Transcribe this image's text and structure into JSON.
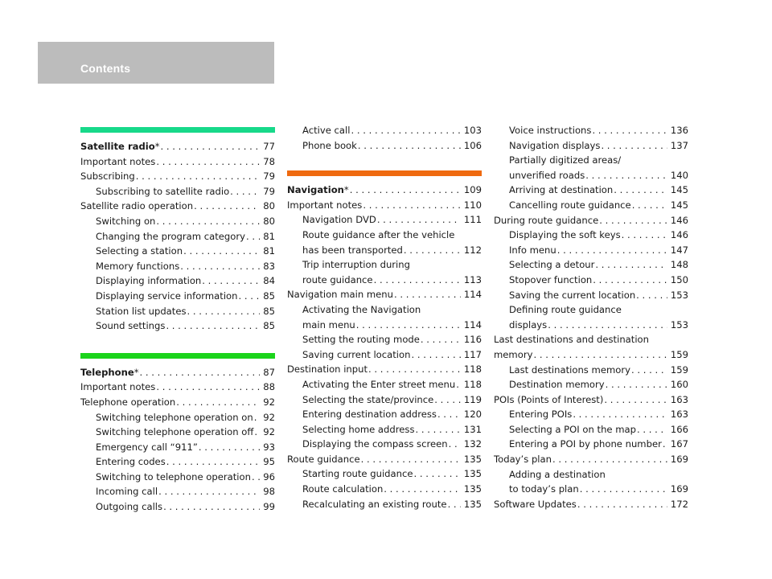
{
  "header": {
    "title": "Contents",
    "bg": "#bcbcbc"
  },
  "colors": {
    "satellite": "#17d98a",
    "telephone": "#1bd41b",
    "navigation": "#ef6a10"
  },
  "sections": {
    "satellite": {
      "title": "Satellite radio",
      "title_suffix": "*",
      "title_page": "77",
      "entries": [
        {
          "text": "Important notes",
          "page": "78"
        },
        {
          "text": "Subscribing",
          "page": "79"
        },
        {
          "text": "Subscribing to satellite radio",
          "page": "79"
        },
        {
          "text": "Satellite radio operation",
          "page": "80"
        },
        {
          "text": "Switching on",
          "page": "80"
        },
        {
          "text": "Changing the program category",
          "page": "81"
        },
        {
          "text": "Selecting a station",
          "page": "81"
        },
        {
          "text": "Memory functions",
          "page": "83"
        },
        {
          "text": "Displaying information",
          "page": "84"
        },
        {
          "text": "Displaying service information",
          "page": "85"
        },
        {
          "text": "Station list updates",
          "page": "85"
        },
        {
          "text": "Sound settings",
          "page": "85"
        }
      ]
    },
    "telephone": {
      "title": "Telephone",
      "title_suffix": "*",
      "title_page": "87",
      "entries": [
        {
          "text": "Important notes",
          "page": "88"
        },
        {
          "text": "Telephone operation",
          "page": "92"
        },
        {
          "text": "Switching telephone operation on",
          "page": "92"
        },
        {
          "text": "Switching telephone operation off",
          "page": "92"
        },
        {
          "text": "Emergency call “911”",
          "page": "93"
        },
        {
          "text": "Entering codes",
          "page": "95"
        },
        {
          "text": "Switching to telephone operation",
          "page": "96"
        },
        {
          "text": "Incoming call",
          "page": "98"
        },
        {
          "text": "Outgoing calls",
          "page": "99"
        },
        {
          "text": "Active call",
          "page": "103"
        },
        {
          "text": "Phone book",
          "page": "106"
        }
      ]
    },
    "navigation": {
      "title": "Navigation",
      "title_suffix": "*",
      "title_page": "109",
      "entries": [
        {
          "text": "Important notes",
          "page": "110"
        },
        {
          "text": "Navigation DVD",
          "page": "111"
        },
        {
          "text": "Route guidance after the vehicle"
        },
        {
          "text": "has been transported",
          "page": "112"
        },
        {
          "text": "Trip interruption during"
        },
        {
          "text": "route guidance",
          "page": "113"
        },
        {
          "text": "Navigation main menu",
          "page": "114"
        },
        {
          "text": "Activating the Navigation"
        },
        {
          "text": "main menu",
          "page": "114"
        },
        {
          "text": "Setting the routing mode",
          "page": "116"
        },
        {
          "text": "Saving current location",
          "page": "117"
        },
        {
          "text": "Destination input",
          "page": "118"
        },
        {
          "text": "Activating the Enter street menu",
          "page": "118"
        },
        {
          "text": "Selecting the state/province",
          "page": "119"
        },
        {
          "text": "Entering destination address",
          "page": "120"
        },
        {
          "text": "Selecting home address",
          "page": "131"
        },
        {
          "text": "Displaying the compass screen",
          "page": "132"
        },
        {
          "text": "Route guidance",
          "page": "135"
        },
        {
          "text": "Starting route guidance",
          "page": "135"
        },
        {
          "text": "Route calculation",
          "page": "135"
        },
        {
          "text": "Recalculating an existing route",
          "page": "135"
        },
        {
          "text": "Voice instructions",
          "page": "136"
        },
        {
          "text": "Navigation displays",
          "page": "137"
        },
        {
          "text": "Partially digitized areas/"
        },
        {
          "text": "unverified roads",
          "page": "140"
        },
        {
          "text": "Arriving at destination",
          "page": "145"
        },
        {
          "text": "Cancelling route guidance",
          "page": "145"
        },
        {
          "text": "During route guidance",
          "page": "146"
        },
        {
          "text": "Displaying the soft keys",
          "page": "146"
        },
        {
          "text": "Info menu",
          "page": "147"
        },
        {
          "text": "Selecting a detour",
          "page": "148"
        },
        {
          "text": "Stopover function",
          "page": "150"
        },
        {
          "text": "Saving the current location",
          "page": "153"
        },
        {
          "text": "Defining route guidance"
        },
        {
          "text": "displays",
          "page": "153"
        },
        {
          "text": "Last destinations and destination"
        },
        {
          "text": "memory",
          "page": "159"
        },
        {
          "text": "Last destinations memory",
          "page": "159"
        },
        {
          "text": "Destination memory",
          "page": "160"
        },
        {
          "text": "POIs (Points of Interest)",
          "page": "163"
        },
        {
          "text": "Entering POIs",
          "page": "163"
        },
        {
          "text": "Selecting a POI on the map",
          "page": "166"
        },
        {
          "text": "Entering a POI by phone number",
          "page": "167"
        },
        {
          "text": "Today’s plan",
          "page": "169"
        },
        {
          "text": "Adding a destination"
        },
        {
          "text": "to today’s plan",
          "page": "169"
        },
        {
          "text": "Software Updates",
          "page": "172"
        }
      ]
    }
  }
}
